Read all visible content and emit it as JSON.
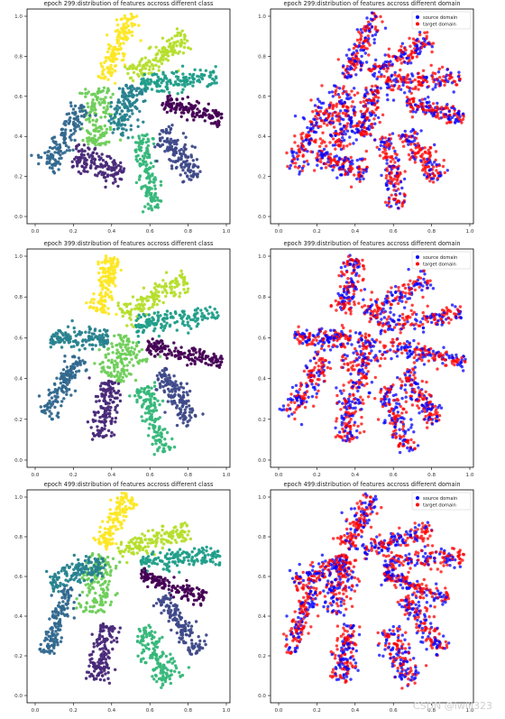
{
  "watermark": "CSDN @iwill323",
  "colors": {
    "source": "#0000ff",
    "target": "#ff0000",
    "class_palette": [
      "#fde725",
      "#b5de2b",
      "#1f9e89",
      "#440154",
      "#35b779",
      "#3e4989",
      "#6ece58",
      "#31688e",
      "#26828e",
      "#482878"
    ]
  },
  "chart_data": [
    {
      "type": "scatter",
      "title": "epoch 299:distribution of features accross different class",
      "xlim": [
        0,
        1
      ],
      "ylim": [
        0,
        1
      ],
      "xticks": [
        "0.0",
        "0.2",
        "0.4",
        "0.6",
        "0.8",
        "1.0"
      ],
      "yticks": [
        "0.0",
        "0.2",
        "0.4",
        "0.6",
        "0.8",
        "1.0"
      ],
      "grid": false,
      "clusters": [
        {
          "class": 0,
          "x": 0.43,
          "y": 0.85,
          "angle": 65,
          "length": 0.36,
          "width": 0.07
        },
        {
          "class": 1,
          "x": 0.64,
          "y": 0.8,
          "angle": 30,
          "length": 0.36,
          "width": 0.08
        },
        {
          "class": 2,
          "x": 0.75,
          "y": 0.68,
          "angle": 5,
          "length": 0.4,
          "width": 0.07
        },
        {
          "class": 3,
          "x": 0.82,
          "y": 0.53,
          "angle": -15,
          "length": 0.32,
          "width": 0.06
        },
        {
          "class": 4,
          "x": 0.59,
          "y": 0.22,
          "angle": -80,
          "length": 0.38,
          "width": 0.08
        },
        {
          "class": 5,
          "x": 0.75,
          "y": 0.31,
          "angle": -50,
          "length": 0.3,
          "width": 0.08
        },
        {
          "class": 6,
          "x": 0.33,
          "y": 0.5,
          "angle": 85,
          "length": 0.3,
          "width": 0.12
        },
        {
          "class": 7,
          "x": 0.16,
          "y": 0.4,
          "angle": 60,
          "length": 0.38,
          "width": 0.09
        },
        {
          "class": 8,
          "x": 0.47,
          "y": 0.53,
          "angle": 70,
          "length": 0.26,
          "width": 0.1
        },
        {
          "class": 9,
          "x": 0.33,
          "y": 0.26,
          "angle": -20,
          "length": 0.28,
          "width": 0.1
        }
      ]
    },
    {
      "type": "scatter",
      "title": "epoch 299:distribution of features accross different domain",
      "xlim": [
        0,
        1
      ],
      "ylim": [
        0,
        1
      ],
      "xticks": [
        "0.0",
        "0.2",
        "0.4",
        "0.6",
        "0.8",
        "1.0"
      ],
      "yticks": [
        "0.0",
        "0.2",
        "0.4",
        "0.6",
        "0.8",
        "1.0"
      ],
      "grid": false,
      "legend_position": "top-right",
      "series": [
        {
          "name": "source domain",
          "color": "#0000ff"
        },
        {
          "name": "target domain",
          "color": "#ff0000"
        }
      ]
    },
    {
      "type": "scatter",
      "title": "epoch 399:distribution of features accross different class",
      "xlim": [
        0,
        1
      ],
      "ylim": [
        0,
        1
      ],
      "xticks": [
        "0.0",
        "0.2",
        "0.4",
        "0.6",
        "0.8",
        "1.0"
      ],
      "yticks": [
        "0.0",
        "0.2",
        "0.4",
        "0.6",
        "0.8",
        "1.0"
      ],
      "grid": false,
      "clusters": [
        {
          "class": 0,
          "x": 0.37,
          "y": 0.86,
          "angle": 75,
          "length": 0.28,
          "width": 0.09
        },
        {
          "class": 1,
          "x": 0.62,
          "y": 0.8,
          "angle": 28,
          "length": 0.38,
          "width": 0.08
        },
        {
          "class": 2,
          "x": 0.74,
          "y": 0.69,
          "angle": 8,
          "length": 0.44,
          "width": 0.07
        },
        {
          "class": 3,
          "x": 0.78,
          "y": 0.52,
          "angle": -12,
          "length": 0.4,
          "width": 0.06
        },
        {
          "class": 4,
          "x": 0.62,
          "y": 0.2,
          "angle": -70,
          "length": 0.34,
          "width": 0.09
        },
        {
          "class": 5,
          "x": 0.74,
          "y": 0.31,
          "angle": -55,
          "length": 0.3,
          "width": 0.08
        },
        {
          "class": 6,
          "x": 0.45,
          "y": 0.5,
          "angle": 60,
          "length": 0.22,
          "width": 0.14
        },
        {
          "class": 7,
          "x": 0.14,
          "y": 0.36,
          "angle": 55,
          "length": 0.34,
          "width": 0.08
        },
        {
          "class": 8,
          "x": 0.23,
          "y": 0.6,
          "angle": 0,
          "length": 0.3,
          "width": 0.07
        },
        {
          "class": 9,
          "x": 0.37,
          "y": 0.24,
          "angle": -100,
          "length": 0.3,
          "width": 0.09
        }
      ]
    },
    {
      "type": "scatter",
      "title": "epoch 399:distribution of features accross different domain",
      "xlim": [
        0,
        1
      ],
      "ylim": [
        0,
        1
      ],
      "xticks": [
        "0.0",
        "0.2",
        "0.4",
        "0.6",
        "0.8",
        "1.0"
      ],
      "yticks": [
        "0.0",
        "0.2",
        "0.4",
        "0.6",
        "0.8",
        "1.0"
      ],
      "grid": false,
      "legend_position": "top-right",
      "series": [
        {
          "name": "source domain",
          "color": "#0000ff"
        },
        {
          "name": "target domain",
          "color": "#ff0000"
        }
      ]
    },
    {
      "type": "scatter",
      "title": "epoch 499:distribution of features accross different class",
      "xlim": [
        0,
        1
      ],
      "ylim": [
        0,
        1
      ],
      "xticks": [
        "0.0",
        "0.2",
        "0.4",
        "0.6",
        "0.8",
        "1.0"
      ],
      "yticks": [
        "0.0",
        "0.2",
        "0.4",
        "0.6",
        "0.8",
        "1.0"
      ],
      "grid": false,
      "clusters": [
        {
          "class": 0,
          "x": 0.42,
          "y": 0.88,
          "angle": 60,
          "length": 0.3,
          "width": 0.08
        },
        {
          "class": 1,
          "x": 0.62,
          "y": 0.78,
          "angle": 15,
          "length": 0.38,
          "width": 0.07
        },
        {
          "class": 2,
          "x": 0.76,
          "y": 0.69,
          "angle": 5,
          "length": 0.42,
          "width": 0.07
        },
        {
          "class": 3,
          "x": 0.72,
          "y": 0.55,
          "angle": -20,
          "length": 0.36,
          "width": 0.06
        },
        {
          "class": 4,
          "x": 0.63,
          "y": 0.2,
          "angle": -60,
          "length": 0.32,
          "width": 0.1
        },
        {
          "class": 5,
          "x": 0.76,
          "y": 0.36,
          "angle": -55,
          "length": 0.34,
          "width": 0.08
        },
        {
          "class": 6,
          "x": 0.32,
          "y": 0.56,
          "angle": 80,
          "length": 0.3,
          "width": 0.12
        },
        {
          "class": 7,
          "x": 0.12,
          "y": 0.38,
          "angle": 70,
          "length": 0.36,
          "width": 0.07
        },
        {
          "class": 8,
          "x": 0.22,
          "y": 0.62,
          "angle": 20,
          "length": 0.3,
          "width": 0.08
        },
        {
          "class": 9,
          "x": 0.35,
          "y": 0.21,
          "angle": -100,
          "length": 0.3,
          "width": 0.09
        }
      ]
    },
    {
      "type": "scatter",
      "title": "epoch 499:distribution of features accross different domain",
      "xlim": [
        0,
        1
      ],
      "ylim": [
        0,
        1
      ],
      "xticks": [
        "0.0",
        "0.2",
        "0.4",
        "0.6",
        "0.8",
        "1.0"
      ],
      "yticks": [
        "0.0",
        "0.2",
        "0.4",
        "0.6",
        "0.8",
        "1.0"
      ],
      "grid": false,
      "legend_position": "top-right",
      "series": [
        {
          "name": "source domain",
          "color": "#0000ff"
        },
        {
          "name": "target domain",
          "color": "#ff0000"
        }
      ]
    }
  ]
}
